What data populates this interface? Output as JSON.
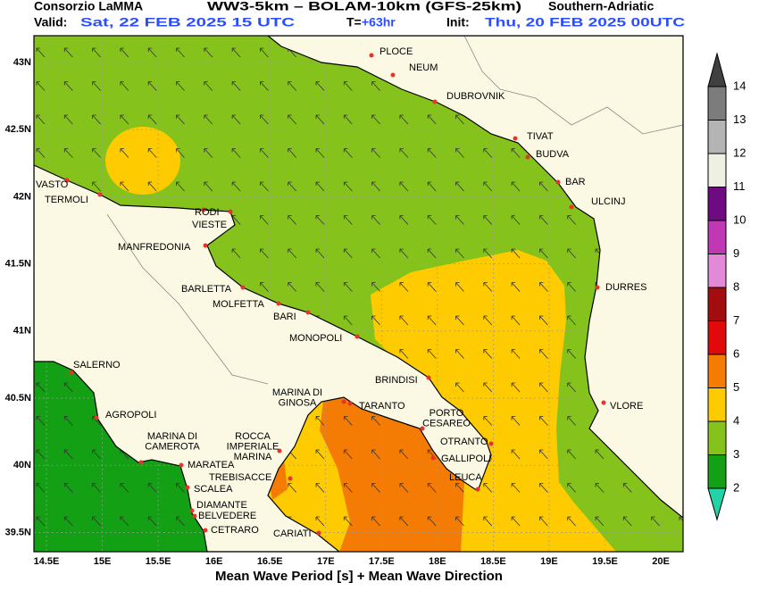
{
  "header": {
    "org": "Consorzio LaMMA",
    "model": "WW3-5km – BOLAM-10km (GFS-25km)",
    "region": "Southern-Adriatic",
    "valid_label": "Valid:",
    "valid": "Sat, 22 FEB 2025  15 UTC",
    "lead_label": "T=",
    "lead": "+63hr",
    "init_label": "Init:",
    "init": "Thu, 20 FEB 2025 00UTC"
  },
  "axes": {
    "lat": [
      "43N",
      "42.5N",
      "42N",
      "41.5N",
      "41N",
      "40.5N",
      "40N",
      "39.5N"
    ],
    "lon": [
      "14.5E",
      "15E",
      "15.5E",
      "16E",
      "16.5E",
      "17E",
      "17.5E",
      "18E",
      "18.5E",
      "19E",
      "19.5E",
      "20E"
    ]
  },
  "places": [
    [
      "PLOCE"
    ],
    [
      "NEUM"
    ],
    [
      "DUBROVNIK"
    ],
    [
      "TIVAT"
    ],
    [
      "BUDVA"
    ],
    [
      "BAR"
    ],
    [
      "ULCINJ"
    ],
    [
      "DURRES"
    ],
    [
      "VLORE"
    ],
    [
      "VASTO"
    ],
    [
      "TERMOLI"
    ],
    [
      "RODI"
    ],
    [
      "VIESTE"
    ],
    [
      "MANFREDONIA"
    ],
    [
      "BARLETTA"
    ],
    [
      "MOLFETTA"
    ],
    [
      "BARI"
    ],
    [
      "MONOPOLI"
    ],
    [
      "BRINDISI"
    ],
    [
      "MARINA DI",
      "GINOSA"
    ],
    [
      "TARANTO"
    ],
    [
      "PORTO",
      "CESAREO"
    ],
    [
      "OTRANTO"
    ],
    [
      "GALLIPOLI"
    ],
    [
      "LEUCA"
    ],
    [
      "SALERNO"
    ],
    [
      "AGROPOLI"
    ],
    [
      "MARINA DI",
      "CAMEROTA"
    ],
    [
      "ROCCA",
      "IMPERIALE",
      "MARINA"
    ],
    [
      "MARATEA"
    ],
    [
      "TREBISACCE"
    ],
    [
      "SCALEA"
    ],
    [
      "DIAMANTE"
    ],
    [
      "BELVEDERE"
    ],
    [
      "CETRARO"
    ],
    [
      "CARIATI"
    ]
  ],
  "legend": {
    "levels": [
      2,
      3,
      4,
      5,
      6,
      7,
      8,
      9,
      10,
      11,
      12,
      13,
      14
    ],
    "colors": [
      "#22d3a5",
      "#14a014",
      "#86c21c",
      "#fecb00",
      "#f47c05",
      "#e10a0a",
      "#a30d0d",
      "#e28ad8",
      "#c038b4",
      "#6e0a82",
      "#eef0e2",
      "#b4b4b4",
      "#7c7c7c",
      "#404040"
    ]
  },
  "footer": "Mean Wave Period [s] + Mean Wave Direction"
}
